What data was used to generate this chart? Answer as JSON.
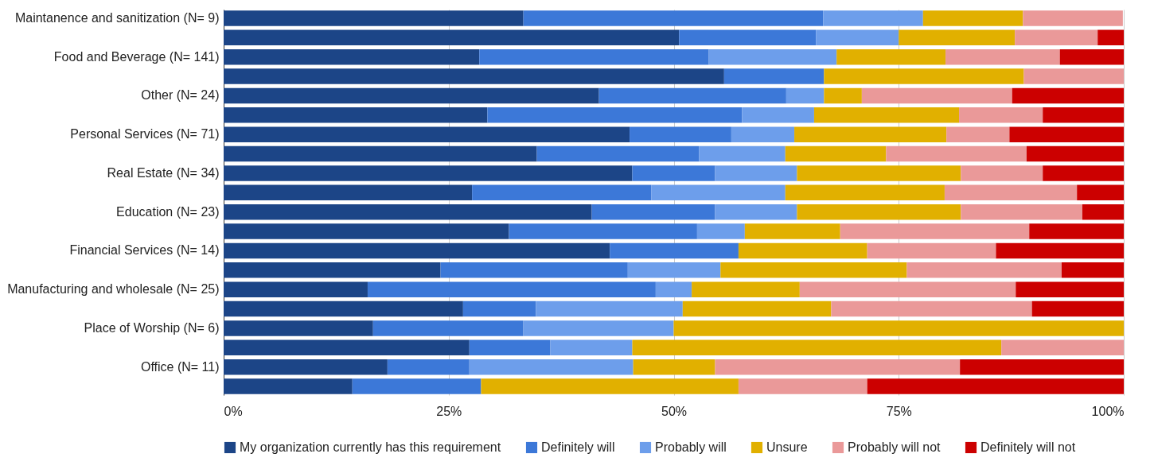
{
  "chart_data": {
    "type": "bar",
    "orientation": "horizontal",
    "stacked": true,
    "categories": [
      "Maintanence and sanitization (N= 9)",
      null,
      "Food and Beverage (N= 141)",
      null,
      "Other (N= 24)",
      null,
      "Personal Services (N= 71)",
      null,
      "Real Estate (N= 34)",
      null,
      "Education (N= 23)",
      null,
      "Financial Services (N= 14)",
      null,
      "Manufacturing and wholesale (N= 25)",
      null,
      "Place of Worship (N= 6)",
      null,
      "Office (N= 11)",
      null
    ],
    "series": [
      {
        "name": "My organization currently has this requirement",
        "color": "#1c4587",
        "values": [
          33.3,
          50.6,
          28.4,
          55.6,
          41.7,
          29.3,
          45.1,
          34.8,
          45.4,
          27.6,
          40.9,
          31.7,
          42.9,
          24.1,
          16,
          26.6,
          16.6,
          27.3,
          18.2,
          14.3
        ]
      },
      {
        "name": "Definitely will",
        "color": "#3c78d8",
        "values": [
          33.3,
          15.2,
          25.5,
          11.1,
          20.8,
          28.3,
          11.3,
          18,
          9.2,
          19.9,
          13.7,
          20.9,
          14.3,
          20.8,
          32,
          8.1,
          16.7,
          9,
          9.1,
          14.3
        ]
      },
      {
        "name": "Probably will",
        "color": "#6d9eeb",
        "values": [
          11.1,
          9.2,
          14.2,
          0,
          4.2,
          8,
          7,
          9.6,
          9.1,
          14.9,
          9.1,
          5.3,
          0,
          10.3,
          4,
          16.3,
          16.7,
          9.1,
          18.2,
          0
        ]
      },
      {
        "name": "Unsure",
        "color": "#e1b000",
        "values": [
          11.1,
          12.9,
          12.1,
          22.2,
          4.2,
          16.1,
          16.9,
          11.2,
          18.2,
          17.7,
          18.2,
          10.6,
          14.3,
          20.7,
          12,
          16.5,
          50,
          41,
          9.1,
          28.6
        ]
      },
      {
        "name": "Probably will not",
        "color": "#ea9999",
        "values": [
          11.1,
          9.2,
          12.7,
          11.1,
          16.7,
          9.3,
          7,
          15.6,
          9.1,
          14.7,
          13.5,
          21,
          14.3,
          17.2,
          24,
          22.3,
          0,
          13.6,
          27.2,
          14.3
        ]
      },
      {
        "name": "Definitely will not",
        "color": "#cc0000",
        "values": [
          0,
          2.9,
          7.1,
          0,
          12.4,
          9,
          12.7,
          10.8,
          9,
          5.2,
          4.6,
          10.5,
          14.2,
          6.9,
          12,
          10.2,
          0,
          0,
          18.2,
          28.5
        ]
      }
    ],
    "xlim": [
      0,
      100
    ],
    "xticks": [
      {
        "value": 0,
        "label": "0%"
      },
      {
        "value": 25,
        "label": "25%"
      },
      {
        "value": 50,
        "label": "50%"
      },
      {
        "value": 75,
        "label": "75%"
      },
      {
        "value": 100,
        "label": "100%"
      }
    ],
    "grid": "x",
    "legend": "bottom"
  }
}
